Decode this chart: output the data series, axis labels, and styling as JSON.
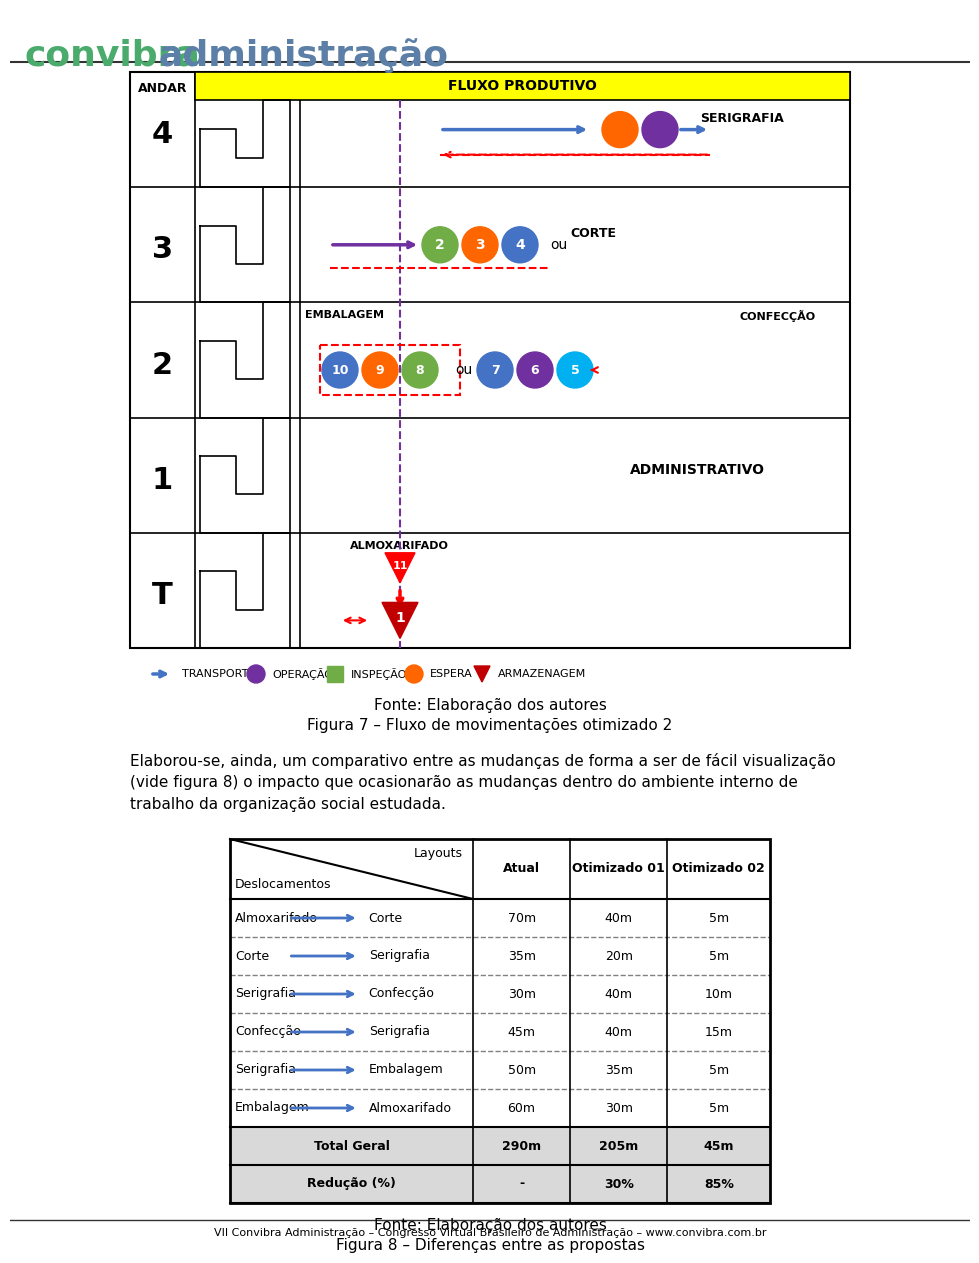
{
  "header_text": "convibra administração",
  "header_bg": "#ffffff",
  "header_line_color": "#333333",
  "footer_text": "VII Convibra Administração – Congresso Virtual Brasileiro de Administração – www.convibra.com.br",
  "footer_line_color": "#333333",
  "caption1": "Fonte: Elaboração dos autores",
  "caption2": "Figura 7 – Fluxo de movimentações otimizado 2",
  "body_text": "Elaborou-se, ainda, um comparativo entre as mudanças de forma a ser de fácil visualização\n(vide figura 8) o impacto que ocasionarão as mudanças dentro do ambiente interno de\ntrabalho da organização social estudada.",
  "table_header_row": [
    "",
    "Atual",
    "Otimizado 01",
    "Otimizado 02"
  ],
  "table_col1_top": "Layouts",
  "table_col1_bottom": "Deslocamentos",
  "table_rows": [
    [
      "Almoxarifado  →  Corte",
      "70m",
      "40m",
      "5m"
    ],
    [
      "Corte           →  Serigrafia",
      "35m",
      "20m",
      "5m"
    ],
    [
      "Serigrafia      →  Confecção",
      "30m",
      "40m",
      "10m"
    ],
    [
      "Confecção    →  Serigrafia",
      "45m",
      "40m",
      "15m"
    ],
    [
      "Serigrafia      →  Embalagem",
      "50m",
      "35m",
      "5m"
    ],
    [
      "Embalagem  →  Almoxarifado",
      "60m",
      "30m",
      "5m"
    ]
  ],
  "table_total_row": [
    "Total Geral",
    "290m",
    "205m",
    "45m"
  ],
  "table_reduction_row": [
    "Redução (%)",
    "-",
    "30%",
    "85%"
  ],
  "table_total_bg": "#e8e8e8",
  "table_reduction_bg": "#e8e8e8",
  "caption3": "Fonte: Elaboração dos autores",
  "caption4": "Figura 8 – Diferenças entre as propostas"
}
